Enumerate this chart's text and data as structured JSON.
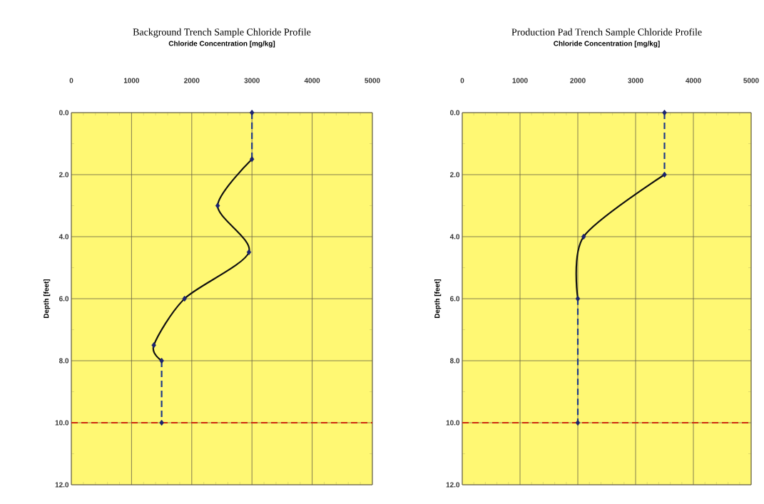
{
  "chart_data": [
    {
      "type": "line",
      "title": "Background Trench Sample Chloride Profile",
      "xlabel": "Chloride Concentration [mg/kg]",
      "ylabel": "Depth  [feet]",
      "xlim": [
        0,
        5000
      ],
      "xticks": [
        0,
        1000,
        2000,
        3000,
        4000,
        5000
      ],
      "ylim": [
        12,
        0
      ],
      "yticks": [
        {
          "value": 0,
          "label": "0.0"
        },
        {
          "value": 2,
          "label": "2.0"
        },
        {
          "value": 4,
          "label": "4.0"
        },
        {
          "value": 6,
          "label": "6.0"
        },
        {
          "value": 8,
          "label": "8.0"
        },
        {
          "value": 10,
          "label": "10.0"
        },
        {
          "value": 12,
          "label": "12.0"
        }
      ],
      "grid": true,
      "series": [
        {
          "color": "#111111",
          "line_style": "solid",
          "x": [
            3000,
            2430,
            2950,
            1880,
            1370,
            1500
          ],
          "values": [
            1.5,
            3,
            4.5,
            6,
            7.5,
            8
          ]
        },
        {
          "color": "#1f3a8a",
          "line_style": "dashed",
          "x": [
            3000,
            3000,
            null,
            1500,
            1500
          ],
          "values": [
            0,
            1.5,
            null,
            8,
            10
          ]
        },
        {
          "type": "scatter",
          "color": "#1a2370",
          "marker": "diamond",
          "x": [
            3000,
            3000,
            2430,
            2950,
            1880,
            1370,
            1500,
            1500
          ],
          "values": [
            0,
            1.5,
            3,
            4.5,
            6,
            7.5,
            8,
            10
          ]
        }
      ],
      "ref_lines": [
        {
          "axis": "y",
          "value": 10,
          "color": "#cc2a10",
          "line_style": "dashed"
        }
      ]
    },
    {
      "type": "line",
      "title": "Production Pad Trench Sample Chloride Profile",
      "xlabel": "Chloride Concentration [mg/kg]",
      "ylabel": "Depth  [feet]",
      "xlim": [
        0,
        5000
      ],
      "xticks": [
        0,
        1000,
        2000,
        3000,
        4000,
        5000
      ],
      "ylim": [
        12,
        0
      ],
      "yticks": [
        {
          "value": 0,
          "label": "0.0"
        },
        {
          "value": 2,
          "label": "2.0"
        },
        {
          "value": 4,
          "label": "4.0"
        },
        {
          "value": 6,
          "label": "6.0"
        },
        {
          "value": 8,
          "label": "8.0"
        },
        {
          "value": 10,
          "label": "10.0"
        },
        {
          "value": 12,
          "label": "12.0"
        }
      ],
      "grid": true,
      "series": [
        {
          "color": "#111111",
          "line_style": "solid",
          "x": [
            3500,
            2100,
            2000
          ],
          "values": [
            2,
            4,
            6
          ]
        },
        {
          "color": "#1f3a8a",
          "line_style": "dashed",
          "x": [
            3500,
            3500,
            null,
            2000,
            2000
          ],
          "values": [
            0,
            2,
            null,
            6,
            10
          ]
        },
        {
          "type": "scatter",
          "color": "#1a2370",
          "marker": "diamond",
          "x": [
            3500,
            3500,
            2100,
            2000,
            2000
          ],
          "values": [
            0,
            2,
            4,
            6,
            10
          ]
        }
      ],
      "ref_lines": [
        {
          "axis": "y",
          "value": 10,
          "color": "#cc2a10",
          "line_style": "dashed"
        }
      ]
    }
  ]
}
